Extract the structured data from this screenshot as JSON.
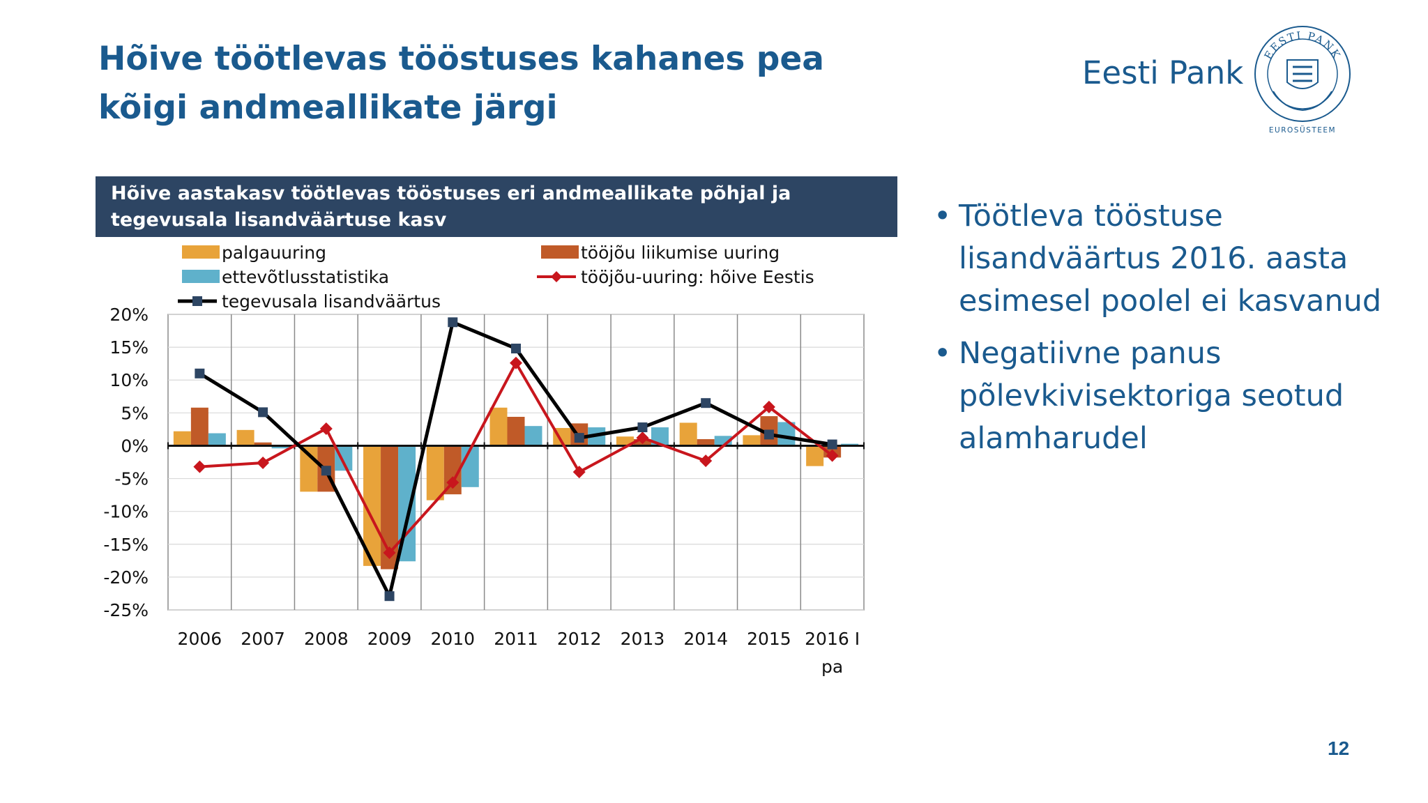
{
  "slide": {
    "title": "Hõive töötlevas tööstuses kahanes pea kõigi andmeallikate järgi",
    "brand": "Eesti Pank",
    "seal_text": "EESTI PANK",
    "seal_caption": "EUROSÜSTEEM",
    "page_number": "12",
    "bullets": [
      "Töötleva tööstuse lisandväärtus 2016. aasta esimesel poolel ei kasvanud",
      "Negatiivne panus põlevkivisektoriga seotud alamharudel"
    ]
  },
  "colors": {
    "title": "#1a5a8e",
    "header_bg": "#2d4563",
    "palgauuring": "#e8a33a",
    "liikumise": "#c05a28",
    "ettevotlus": "#5fb1cb",
    "hoive": "#c8161d",
    "lisandvaartus": "#000000",
    "marker": "#2d4563"
  },
  "chart_data": {
    "type": "bar",
    "title": "Hõive aastakasv töötlevas tööstuses eri andmeallikate põhjal ja tegevusala lisandväärtuse kasv",
    "categories": [
      "2006",
      "2007",
      "2008",
      "2009",
      "2010",
      "2011",
      "2012",
      "2013",
      "2014",
      "2015",
      "2016 I pa"
    ],
    "ylim": [
      -25,
      20
    ],
    "yticks": [
      "20%",
      "15%",
      "10%",
      "5%",
      "0%",
      "-5%",
      "-10%",
      "-15%",
      "-20%",
      "-25%"
    ],
    "grid": true,
    "legend_position": "top",
    "series": [
      {
        "name": "palgauuring",
        "kind": "bar",
        "values": [
          2.2,
          2.4,
          -7.0,
          -18.3,
          -8.3,
          5.8,
          2.7,
          1.4,
          3.5,
          1.6,
          -3.1
        ]
      },
      {
        "name": "tööjõu liikumise uuring",
        "kind": "bar",
        "values": [
          5.8,
          0.5,
          -7.0,
          -18.8,
          -7.4,
          4.4,
          3.4,
          1.0,
          1.0,
          4.5,
          -1.8
        ]
      },
      {
        "name": "ettevõtlusstatistika",
        "kind": "bar",
        "values": [
          1.9,
          -0.4,
          -3.8,
          -17.6,
          -6.3,
          3.0,
          2.8,
          2.8,
          1.5,
          3.6,
          0.3
        ]
      },
      {
        "name": "tööjõu-uuring: hõive Eestis",
        "kind": "line",
        "marker": "diamond",
        "values": [
          -3.2,
          -2.6,
          2.6,
          -16.3,
          -5.6,
          12.6,
          -4.0,
          1.2,
          -2.3,
          5.9,
          -1.5
        ]
      },
      {
        "name": "tegevusala lisandväärtus",
        "kind": "line",
        "marker": "square",
        "values": [
          11.0,
          5.1,
          -3.8,
          -22.9,
          18.8,
          14.8,
          1.2,
          2.8,
          6.5,
          1.7,
          0.2
        ]
      }
    ]
  }
}
